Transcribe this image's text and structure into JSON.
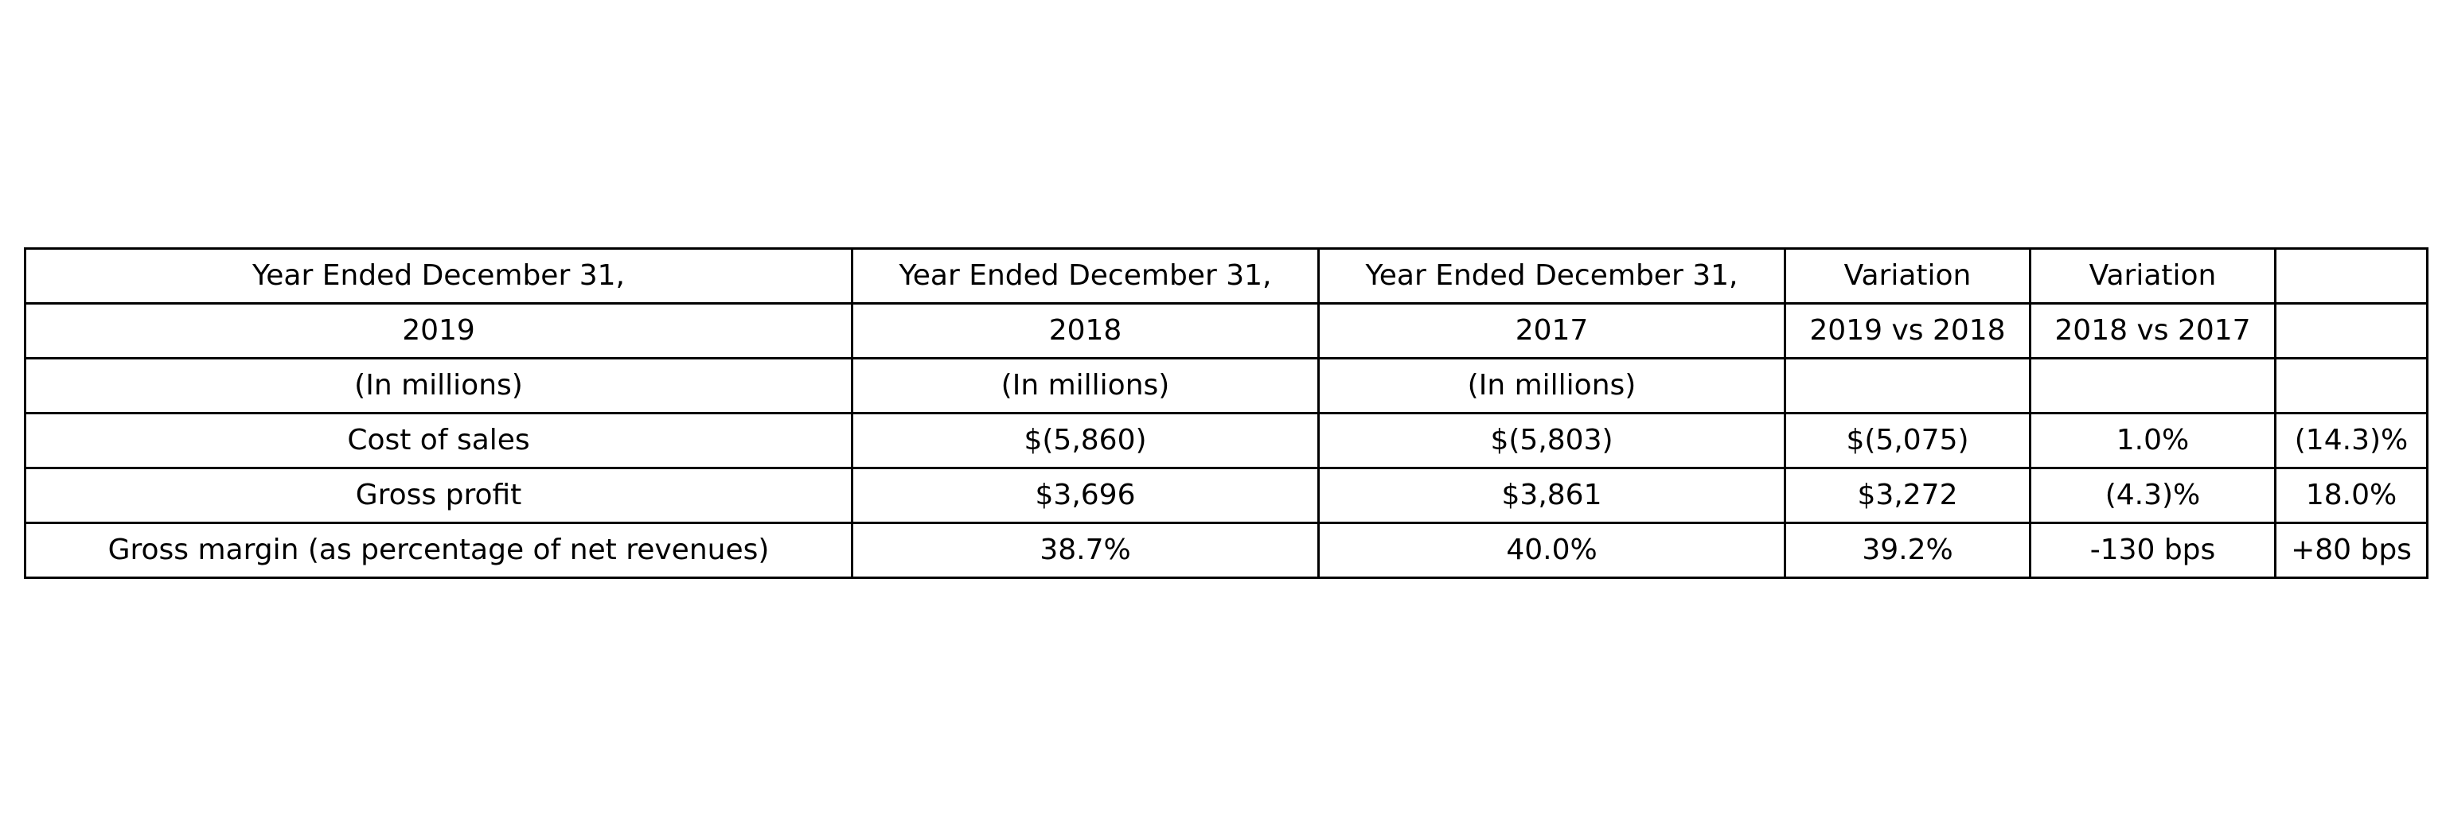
{
  "chart_data": {
    "type": "table",
    "rows": [
      [
        "Year Ended December 31,",
        "Year Ended December 31,",
        "Year Ended December 31,",
        "Variation",
        "Variation",
        ""
      ],
      [
        "2019",
        "2018",
        "2017",
        "2019 vs 2018",
        "2018 vs 2017",
        ""
      ],
      [
        "(In millions)",
        "(In millions)",
        "(In millions)",
        "",
        "",
        ""
      ],
      [
        "Cost of sales",
        "$(5,860)",
        "$(5,803)",
        "$(5,075)",
        "1.0%",
        "(14.3)%"
      ],
      [
        "Gross profit",
        "$3,696",
        "$3,861",
        "$3,272",
        "(4.3)%",
        "18.0%"
      ],
      [
        "Gross margin (as percentage of net revenues)",
        "38.7%",
        "40.0%",
        "39.2%",
        "-130 bps",
        "+80 bps"
      ]
    ],
    "grid": true
  }
}
